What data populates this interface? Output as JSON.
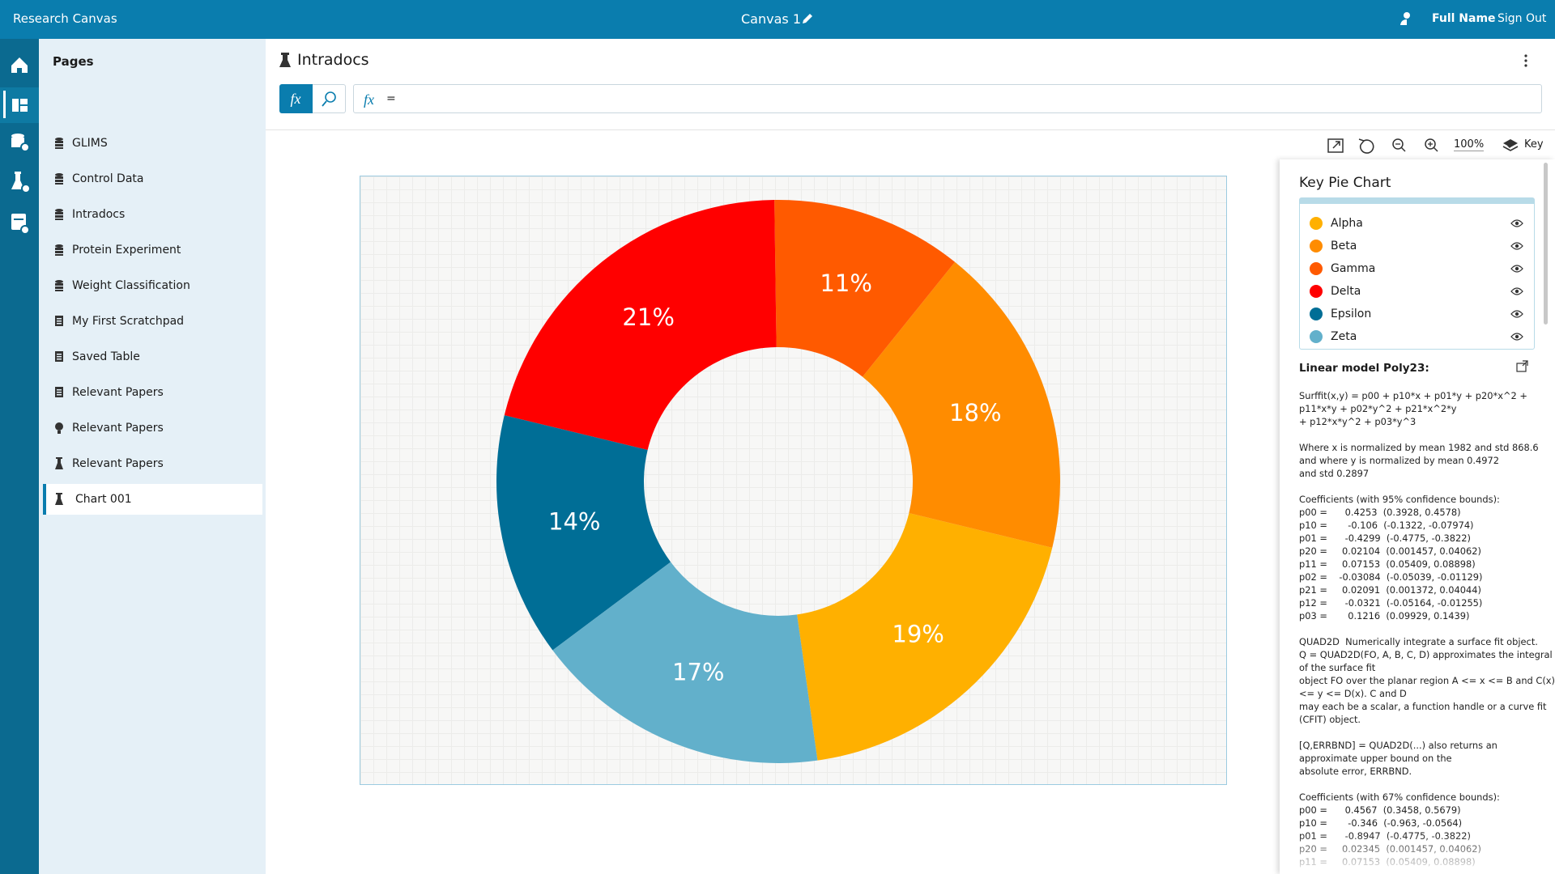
{
  "header": {
    "app_name": "Research Canvas",
    "canvas_name": "Canvas 1",
    "user": "Full Name",
    "sign_out": "Sign Out"
  },
  "sidebar": {
    "title": "Pages",
    "items": [
      "GLIMS",
      "Control Data",
      "Intradocs",
      "Protein Experiment",
      "Weight Classification",
      "My First Scratchpad",
      "Saved Table",
      "Relevant Papers",
      "Relevant Papers",
      "Relevant Papers",
      "Chart 001"
    ]
  },
  "page": {
    "title": "Intradocs",
    "formula": "=",
    "zoom": "100%",
    "key_button": "Key"
  },
  "chart_data": {
    "type": "pie",
    "donut": true,
    "categories": [
      "Alpha",
      "Beta",
      "Gamma",
      "Delta",
      "Epsilon",
      "Zeta"
    ],
    "values": [
      19,
      18,
      11,
      21,
      14,
      17
    ],
    "value_labels": [
      "19%",
      "18%",
      "11%",
      "21%",
      "14%",
      "17%"
    ],
    "colors": [
      "#ffb000",
      "#ff8c00",
      "#ff5a00",
      "#ff0000",
      "#006e96",
      "#62b0cb"
    ]
  },
  "key_panel": {
    "title": "Key Pie Chart",
    "model_title": "Linear model Poly23:",
    "notes": [
      [
        "Surffit(x,y) = p00 + p10*x + p01*y + p20*x^2 +",
        "p11*x*y + p02*y^2 + p21*x^2*y",
        "+ p12*x*y^2 + p03*y^3"
      ],
      [
        "Where x is normalized by mean 1982 and std 868.6",
        "and where y is normalized by mean 0.4972",
        "and std 0.2897"
      ],
      [
        "Coefficients (with 95% confidence bounds):",
        "p00 =      0.4253  (0.3928, 0.4578)",
        "p10 =       -0.106  (-0.1322, -0.07974)",
        "p01 =      -0.4299  (-0.4775, -0.3822)",
        "p20 =     0.02104  (0.001457, 0.04062)",
        "p11 =     0.07153  (0.05409, 0.08898)",
        "p02 =    -0.03084  (-0.05039, -0.01129)",
        "p21 =     0.02091  (0.001372, 0.04044)",
        "p12 =      -0.0321  (-0.05164, -0.01255)",
        "p03 =       0.1216  (0.09929, 0.1439)"
      ],
      [
        "QUAD2D  Numerically integrate a surface fit object.",
        "Q = QUAD2D(FO, A, B, C, D) approximates the integral",
        "of the surface fit",
        "object FO over the planar region A <= x <= B and C(x)",
        "<= y <= D(x). C and D",
        "may each be a scalar, a function handle or a curve fit",
        "(CFIT) object."
      ],
      [
        "[Q,ERRBND] = QUAD2D(...) also returns an",
        "approximate upper bound on the",
        "absolute error, ERRBND."
      ],
      [
        "Coefficients (with 67% confidence bounds):",
        "p00 =      0.4567  (0.3458, 0.5679)",
        "p10 =       -0.346  (-0.963, -0.0564)",
        "p01 =      -0.8947  (-0.4775, -0.3822)",
        "p20 =     0.02345  (0.001457, 0.04062)",
        "p11 =     0.07153  (0.05409, 0.08898)"
      ]
    ]
  }
}
